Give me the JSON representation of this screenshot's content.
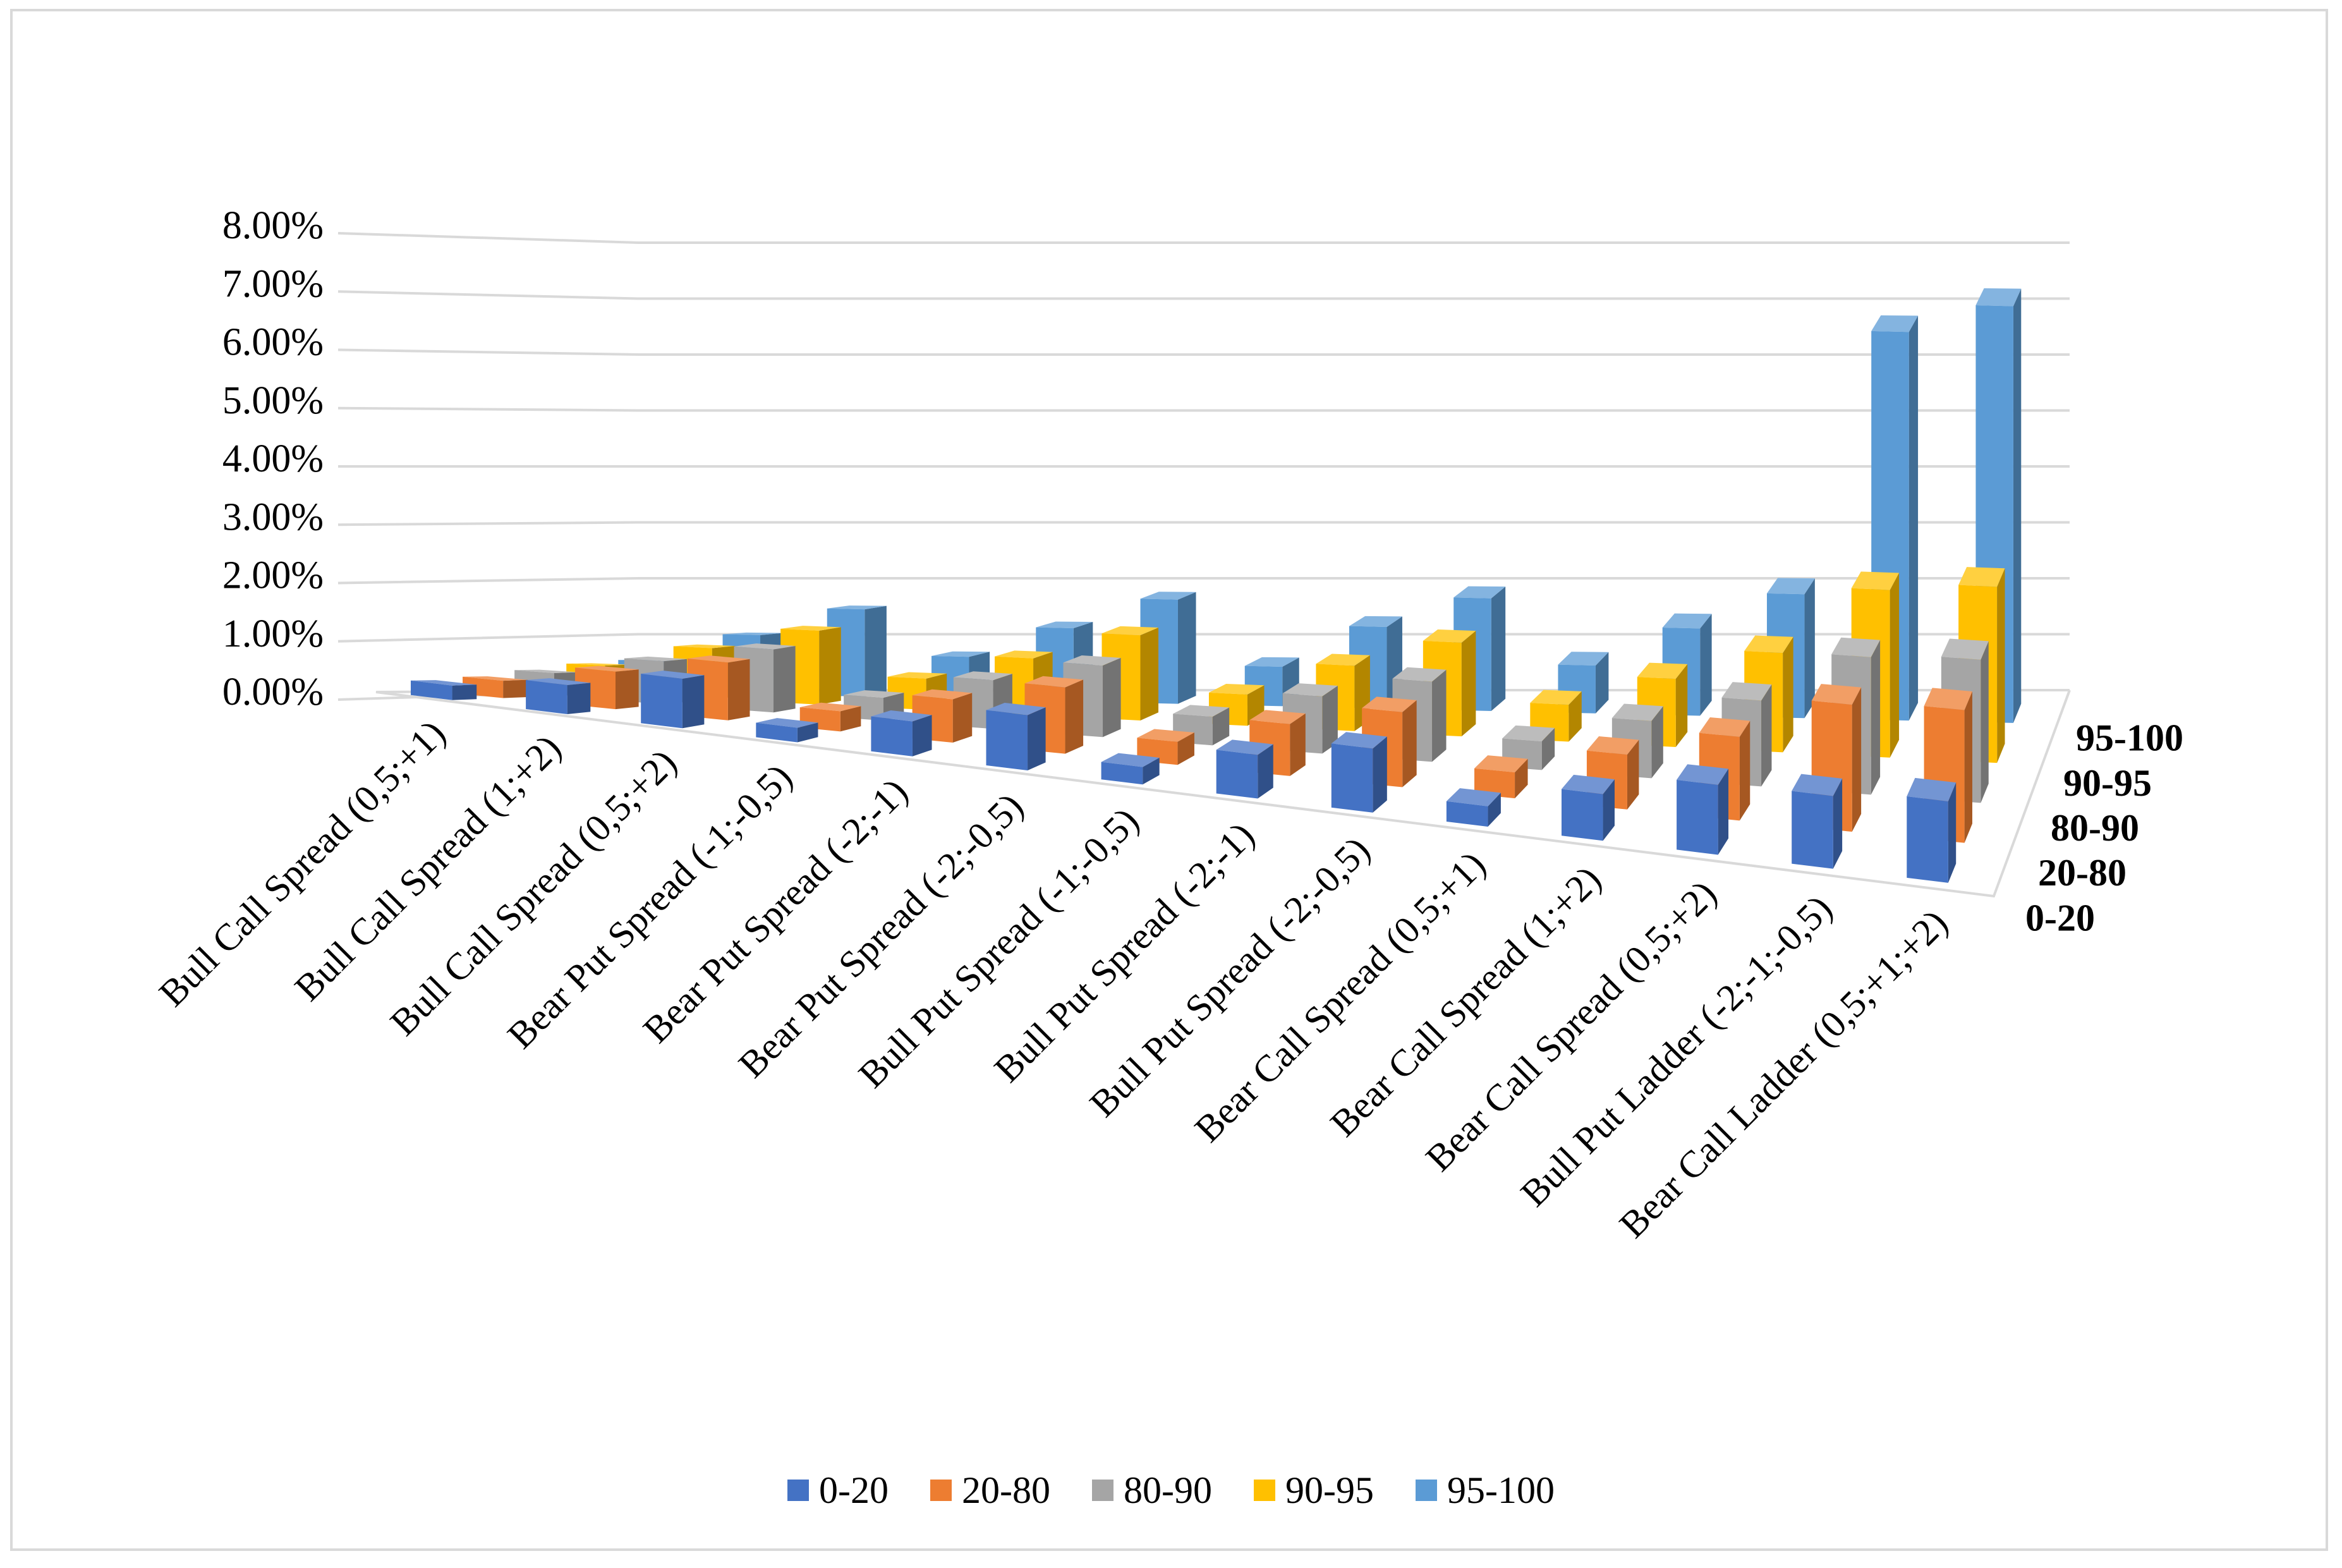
{
  "chart_data": {
    "type": "bar-3d",
    "title": "",
    "xlabel": "",
    "ylabel": "",
    "ylim": [
      0,
      8
    ],
    "yticks": [
      "0.00%",
      "1.00%",
      "2.00%",
      "3.00%",
      "4.00%",
      "5.00%",
      "6.00%",
      "7.00%",
      "8.00%"
    ],
    "grid": true,
    "legend_position": "bottom",
    "categories": [
      "Bull Call Spread (0,5;+1)",
      "Bull Call Spread (1;+2)",
      "Bull Call Spread (0,5;+2)",
      "Bear Put Spread (-1;-0,5)",
      "Bear Put Spread (-2;-1)",
      "Bear Put Spread (-2;-0,5)",
      "Bull Put Spread (-1;-0,5)",
      "Bull Put Spread (-2;-1)",
      "Bull Put Spread (-2;-0,5)",
      "Bear Call Spread (0,5;+1)",
      "Bear Call Spread (1;+2)",
      "Bear Call Spread (0,5;+2)",
      "Bull Put Ladder (-2;-1;-0,5)",
      "Bear Call Ladder (0,5;+1;+2)"
    ],
    "series": [
      {
        "name": "0-20",
        "color": "#4472c4",
        "values": [
          0.25,
          0.5,
          0.85,
          0.25,
          0.6,
          0.95,
          0.3,
          0.75,
          1.1,
          0.35,
          0.8,
          1.2,
          1.25,
          1.4
        ]
      },
      {
        "name": "20-80",
        "color": "#ed7d31",
        "values": [
          0.3,
          0.65,
          1.0,
          0.35,
          0.75,
          1.15,
          0.4,
          0.9,
          1.3,
          0.45,
          0.95,
          1.45,
          2.2,
          2.3
        ]
      },
      {
        "name": "80-90",
        "color": "#a5a5a5",
        "values": [
          0.4,
          0.75,
          1.1,
          0.4,
          0.85,
          1.25,
          0.5,
          1.0,
          1.4,
          0.5,
          1.0,
          1.5,
          2.4,
          2.5
        ]
      },
      {
        "name": "90-95",
        "color": "#ffc000",
        "values": [
          0.5,
          0.9,
          1.3,
          0.55,
          1.0,
          1.5,
          0.55,
          1.15,
          1.65,
          0.65,
          1.2,
          1.75,
          2.95,
          3.1
        ]
      },
      {
        "name": "95-100",
        "color": "#5b9bd5",
        "values": [
          0.55,
          1.05,
          1.55,
          0.75,
          1.3,
          1.85,
          0.7,
          1.45,
          2.0,
          0.85,
          1.55,
          2.2,
          6.9,
          7.4
        ]
      }
    ]
  }
}
